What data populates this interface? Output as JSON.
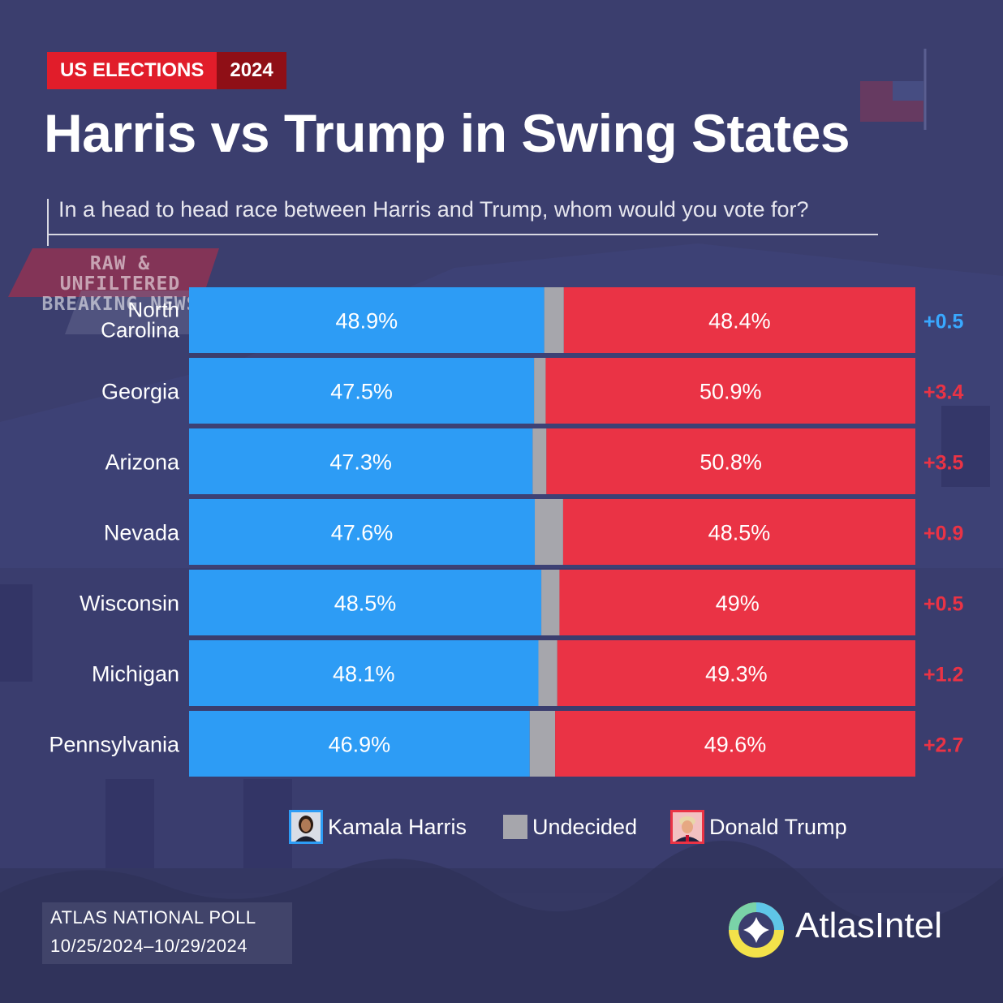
{
  "header": {
    "tag_label": "US ELECTIONS",
    "tag_year": "2024",
    "title": "Harris vs Trump in Swing States",
    "subtitle": "In a head to head race between Harris and Trump, whom would you vote for?"
  },
  "watermark": {
    "line1": "RAW & UNFILTERED",
    "line2": "BREAKING NEWS"
  },
  "chart_data": {
    "type": "bar",
    "orientation": "horizontal-stacked",
    "categories": [
      "North Carolina",
      "Georgia",
      "Arizona",
      "Nevada",
      "Wisconsin",
      "Michigan",
      "Pennsylvania"
    ],
    "category_lines": [
      [
        "North",
        "Carolina"
      ],
      [
        "Georgia"
      ],
      [
        "Arizona"
      ],
      [
        "Nevada"
      ],
      [
        "Wisconsin"
      ],
      [
        "Michigan"
      ],
      [
        "Pennsylvania"
      ]
    ],
    "series": [
      {
        "name": "Kamala Harris",
        "values": [
          48.9,
          47.5,
          47.3,
          47.6,
          48.5,
          48.1,
          46.9
        ],
        "labels": [
          "48.9%",
          "47.5%",
          "47.3%",
          "47.6%",
          "48.5%",
          "48.1%",
          "46.9%"
        ],
        "color": "#2d9cf5"
      },
      {
        "name": "Undecided",
        "values": [
          2.7,
          1.6,
          1.9,
          3.9,
          2.5,
          2.6,
          3.5
        ],
        "color": "#a6a6ac"
      },
      {
        "name": "Donald Trump",
        "values": [
          48.4,
          50.9,
          50.8,
          48.5,
          49.0,
          49.3,
          49.6
        ],
        "labels": [
          "48.4%",
          "50.9%",
          "50.8%",
          "48.5%",
          "49%",
          "49.3%",
          "49.6%"
        ],
        "color": "#ea3345"
      }
    ],
    "margins": [
      {
        "label": "+0.5",
        "leader": "Harris",
        "color": "#39a8ff"
      },
      {
        "label": "+3.4",
        "leader": "Trump",
        "color": "#ea3345"
      },
      {
        "label": "+3.5",
        "leader": "Trump",
        "color": "#ea3345"
      },
      {
        "label": "+0.9",
        "leader": "Trump",
        "color": "#ea3345"
      },
      {
        "label": "+0.5",
        "leader": "Trump",
        "color": "#ea3345"
      },
      {
        "label": "+1.2",
        "leader": "Trump",
        "color": "#ea3345"
      },
      {
        "label": "+2.7",
        "leader": "Trump",
        "color": "#ea3345"
      }
    ],
    "xlim": [
      0,
      100
    ],
    "legend_position": "bottom-center"
  },
  "legend": {
    "harris": "Kamala Harris",
    "undecided": "Undecided",
    "trump": "Donald Trump"
  },
  "footer": {
    "poll_name": "ATLAS NATIONAL POLL",
    "dates": "10/25/2024–10/29/2024",
    "brand": "AtlasIntel"
  },
  "colors": {
    "background": "#3b3e6e",
    "harris": "#2d9cf5",
    "trump": "#ea3345",
    "undecided": "#a6a6ac",
    "accent_red": "#e11d2a"
  }
}
